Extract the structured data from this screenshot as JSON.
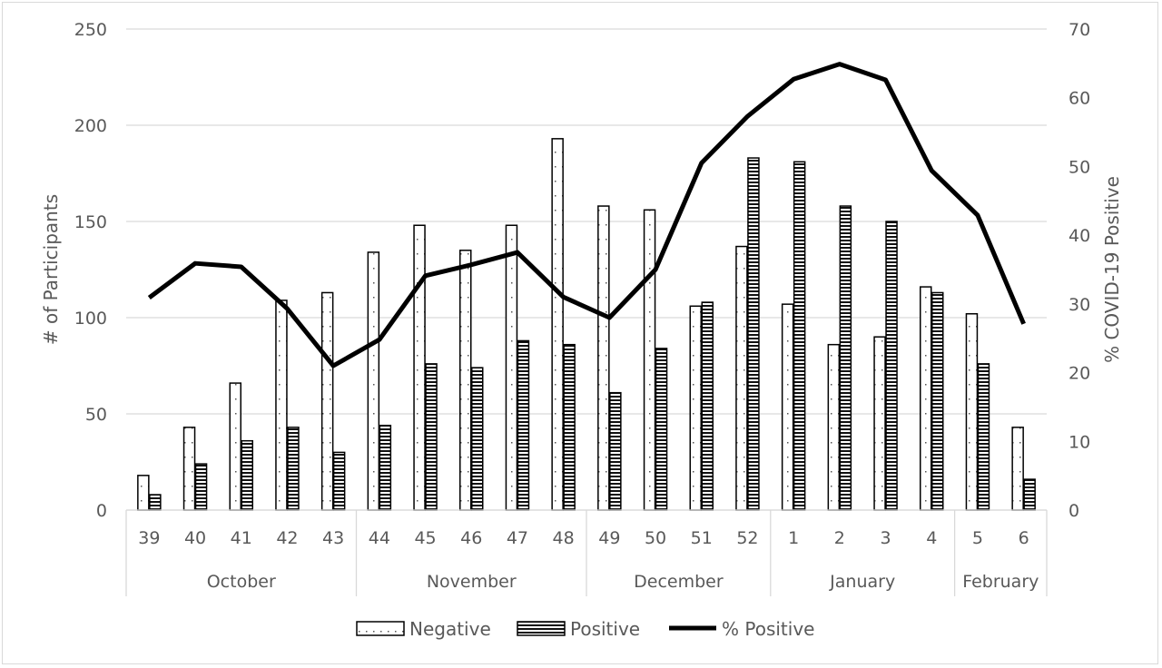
{
  "chart_data": {
    "type": "bar+line",
    "title": "",
    "xlabel": "",
    "ylabel": "# of Participants",
    "y2label": "% COVID-19 Positive",
    "ylim": [
      0,
      250
    ],
    "y2lim": [
      0,
      70
    ],
    "yticks": [
      "0",
      "50",
      "100",
      "150",
      "200",
      "250"
    ],
    "y2ticks": [
      "0",
      "10",
      "20",
      "30",
      "40",
      "50",
      "60",
      "70"
    ],
    "grid": "horizontal",
    "legend_position": "bottom",
    "categories": [
      "39",
      "40",
      "41",
      "42",
      "43",
      "44",
      "45",
      "46",
      "47",
      "48",
      "49",
      "50",
      "51",
      "52",
      "1",
      "2",
      "3",
      "4",
      "5",
      "6"
    ],
    "groups": [
      {
        "label": "October",
        "count": 5
      },
      {
        "label": "November",
        "count": 5
      },
      {
        "label": "December",
        "count": 4
      },
      {
        "label": "January",
        "count": 4
      },
      {
        "label": "February",
        "count": 2
      }
    ],
    "series": [
      {
        "name": "Negative",
        "type": "bar",
        "pattern": "dotted",
        "axis": "left",
        "values": [
          18,
          43,
          66,
          109,
          113,
          134,
          148,
          135,
          148,
          193,
          158,
          156,
          106,
          137,
          107,
          86,
          90,
          116,
          102,
          43
        ]
      },
      {
        "name": "Positive",
        "type": "bar",
        "pattern": "horizontal-stripes",
        "axis": "left",
        "values": [
          8,
          24,
          36,
          43,
          30,
          44,
          76,
          74,
          88,
          86,
          61,
          84,
          108,
          183,
          181,
          158,
          150,
          113,
          76,
          16
        ]
      },
      {
        "name": "% Positive",
        "type": "line",
        "color": "#000000",
        "axis": "right",
        "values": [
          30.9,
          35.9,
          35.4,
          29.3,
          21.0,
          24.8,
          34.1,
          35.7,
          37.5,
          31.0,
          28.0,
          35.0,
          50.5,
          57.3,
          62.7,
          64.9,
          62.6,
          49.4,
          42.9,
          27.1
        ]
      }
    ]
  }
}
